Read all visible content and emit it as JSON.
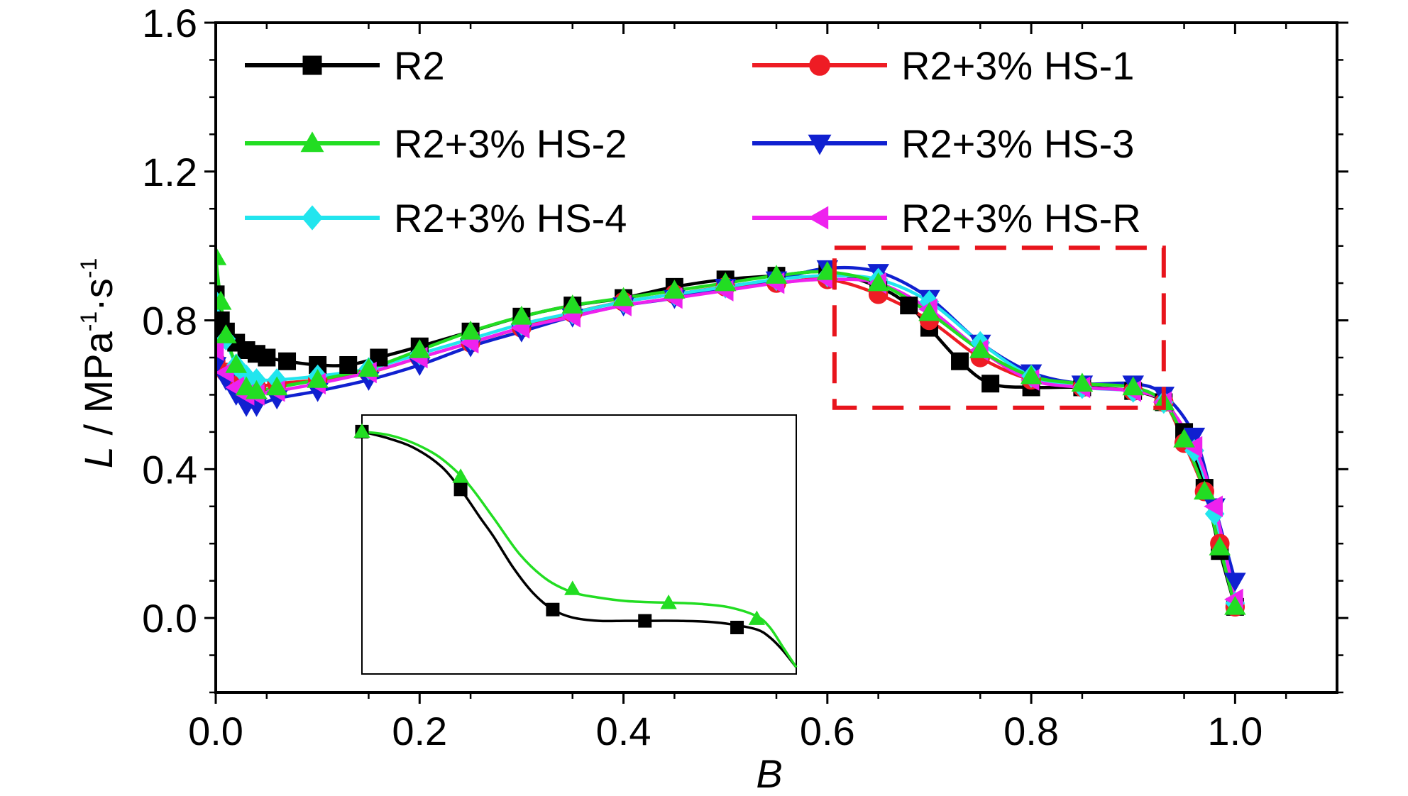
{
  "chart_data": {
    "type": "line",
    "xlabel": "B",
    "ylabel": {
      "var": "L",
      "unit_prefix": " / MPa",
      "exp1": "-1",
      "mid": "·s",
      "exp2": "-1"
    },
    "xlim": [
      0.0,
      1.1
    ],
    "ylim": [
      -0.2,
      1.6
    ],
    "x_ticks": [
      "0.0",
      "0.2",
      "0.4",
      "0.6",
      "0.8",
      "1.0"
    ],
    "x_tick_values": [
      0.0,
      0.2,
      0.4,
      0.6,
      0.8,
      1.0
    ],
    "y_ticks": [
      "0.0",
      "0.4",
      "0.8",
      "1.2",
      "1.6"
    ],
    "y_tick_values": [
      0.0,
      0.4,
      0.8,
      1.2,
      1.6
    ],
    "legend_position": "top",
    "grid": false,
    "series": [
      {
        "name": "R2",
        "color": "#000000",
        "marker": "square",
        "x": [
          0.0,
          0.005,
          0.01,
          0.02,
          0.03,
          0.04,
          0.05,
          0.07,
          0.1,
          0.13,
          0.16,
          0.2,
          0.25,
          0.3,
          0.35,
          0.4,
          0.45,
          0.5,
          0.55,
          0.6,
          0.65,
          0.68,
          0.7,
          0.73,
          0.76,
          0.8,
          0.85,
          0.9,
          0.93,
          0.95,
          0.97,
          0.985,
          1.0
        ],
        "y": [
          0.87,
          0.8,
          0.77,
          0.74,
          0.72,
          0.71,
          0.7,
          0.69,
          0.68,
          0.68,
          0.7,
          0.73,
          0.77,
          0.81,
          0.84,
          0.86,
          0.89,
          0.91,
          0.92,
          0.93,
          0.89,
          0.84,
          0.78,
          0.69,
          0.63,
          0.62,
          0.62,
          0.61,
          0.58,
          0.5,
          0.35,
          0.18,
          0.03
        ]
      },
      {
        "name": "R2+3% HS-1",
        "color": "#ee1c24",
        "marker": "circle",
        "x": [
          0.0,
          0.01,
          0.02,
          0.03,
          0.04,
          0.06,
          0.1,
          0.15,
          0.2,
          0.25,
          0.3,
          0.35,
          0.4,
          0.45,
          0.5,
          0.55,
          0.6,
          0.65,
          0.7,
          0.75,
          0.8,
          0.85,
          0.9,
          0.93,
          0.95,
          0.97,
          0.985,
          1.0
        ],
        "y": [
          0.69,
          0.66,
          0.63,
          0.62,
          0.62,
          0.63,
          0.64,
          0.66,
          0.7,
          0.74,
          0.78,
          0.82,
          0.85,
          0.87,
          0.89,
          0.9,
          0.91,
          0.87,
          0.8,
          0.7,
          0.64,
          0.62,
          0.61,
          0.58,
          0.47,
          0.34,
          0.2,
          0.03
        ]
      },
      {
        "name": "R2+3% HS-2",
        "color": "#22dd22",
        "marker": "triangle-up",
        "x": [
          0.0,
          0.005,
          0.01,
          0.02,
          0.03,
          0.04,
          0.06,
          0.1,
          0.15,
          0.2,
          0.25,
          0.3,
          0.35,
          0.4,
          0.45,
          0.5,
          0.55,
          0.6,
          0.65,
          0.7,
          0.75,
          0.8,
          0.85,
          0.9,
          0.93,
          0.95,
          0.97,
          0.985,
          1.0
        ],
        "y": [
          0.97,
          0.85,
          0.76,
          0.68,
          0.62,
          0.61,
          0.62,
          0.64,
          0.67,
          0.72,
          0.77,
          0.81,
          0.84,
          0.86,
          0.88,
          0.9,
          0.92,
          0.93,
          0.9,
          0.82,
          0.72,
          0.65,
          0.63,
          0.62,
          0.58,
          0.48,
          0.34,
          0.19,
          0.03
        ]
      },
      {
        "name": "R2+3% HS-3",
        "color": "#1020d0",
        "marker": "triangle-down",
        "x": [
          0.0,
          0.01,
          0.02,
          0.03,
          0.04,
          0.06,
          0.1,
          0.15,
          0.2,
          0.25,
          0.3,
          0.35,
          0.4,
          0.45,
          0.5,
          0.55,
          0.6,
          0.65,
          0.7,
          0.75,
          0.8,
          0.85,
          0.9,
          0.93,
          0.96,
          0.98,
          1.0
        ],
        "y": [
          0.68,
          0.64,
          0.6,
          0.57,
          0.57,
          0.59,
          0.61,
          0.64,
          0.68,
          0.73,
          0.77,
          0.81,
          0.84,
          0.86,
          0.89,
          0.91,
          0.94,
          0.93,
          0.86,
          0.74,
          0.66,
          0.63,
          0.63,
          0.6,
          0.49,
          0.3,
          0.1
        ]
      },
      {
        "name": "R2+3% HS-4",
        "color": "#22e5ee",
        "marker": "diamond",
        "x": [
          0.0,
          0.01,
          0.02,
          0.03,
          0.04,
          0.06,
          0.1,
          0.15,
          0.2,
          0.25,
          0.3,
          0.35,
          0.4,
          0.45,
          0.5,
          0.55,
          0.6,
          0.65,
          0.7,
          0.75,
          0.8,
          0.85,
          0.9,
          0.93,
          0.96,
          0.98,
          1.0
        ],
        "y": [
          0.85,
          0.75,
          0.68,
          0.65,
          0.64,
          0.64,
          0.65,
          0.67,
          0.71,
          0.75,
          0.79,
          0.82,
          0.85,
          0.87,
          0.89,
          0.91,
          0.92,
          0.91,
          0.85,
          0.74,
          0.65,
          0.62,
          0.61,
          0.58,
          0.45,
          0.28,
          0.04
        ]
      },
      {
        "name": "R2+3% HS-R",
        "color": "#ee22ee",
        "marker": "triangle-left",
        "x": [
          0.0,
          0.01,
          0.02,
          0.03,
          0.04,
          0.06,
          0.1,
          0.15,
          0.2,
          0.25,
          0.3,
          0.35,
          0.4,
          0.45,
          0.5,
          0.55,
          0.6,
          0.65,
          0.7,
          0.75,
          0.8,
          0.85,
          0.9,
          0.93,
          0.96,
          0.98,
          1.0
        ],
        "y": [
          0.72,
          0.66,
          0.62,
          0.6,
          0.6,
          0.61,
          0.63,
          0.66,
          0.7,
          0.74,
          0.78,
          0.81,
          0.84,
          0.86,
          0.88,
          0.9,
          0.91,
          0.9,
          0.83,
          0.72,
          0.64,
          0.62,
          0.61,
          0.58,
          0.46,
          0.3,
          0.05
        ]
      }
    ],
    "highlight_box": {
      "x0": 0.607,
      "x1": 0.93,
      "y0": 0.565,
      "y1": 0.995,
      "color": "#e8141c"
    },
    "inset": {
      "xlim": [
        0.6,
        0.93
      ],
      "ylim": [
        0.565,
        0.955
      ],
      "series": [
        {
          "name": "R2",
          "color": "#000000",
          "marker": "square",
          "x": [
            0.6,
            0.62,
            0.64,
            0.66,
            0.675,
            0.69,
            0.7,
            0.715,
            0.73,
            0.745,
            0.76,
            0.78,
            0.8,
            0.82,
            0.84,
            0.86,
            0.88,
            0.9,
            0.91,
            0.92,
            0.93
          ],
          "y": [
            0.93,
            0.92,
            0.905,
            0.878,
            0.843,
            0.8,
            0.772,
            0.725,
            0.687,
            0.662,
            0.65,
            0.645,
            0.645,
            0.645,
            0.645,
            0.644,
            0.64,
            0.632,
            0.62,
            0.6,
            0.575
          ]
        },
        {
          "name": "R2+3% HS-2",
          "color": "#22dd22",
          "marker": "triangle-up",
          "x": [
            0.6,
            0.62,
            0.64,
            0.66,
            0.68,
            0.7,
            0.72,
            0.74,
            0.76,
            0.78,
            0.8,
            0.82,
            0.84,
            0.86,
            0.88,
            0.9,
            0.91,
            0.92,
            0.93
          ],
          "y": [
            0.93,
            0.925,
            0.912,
            0.89,
            0.853,
            0.8,
            0.745,
            0.708,
            0.688,
            0.68,
            0.675,
            0.673,
            0.672,
            0.67,
            0.665,
            0.652,
            0.635,
            0.605,
            0.575
          ]
        }
      ],
      "markers": [
        {
          "series": 0,
          "x": [
            0.6,
            0.675,
            0.745,
            0.815,
            0.885
          ],
          "y": [
            0.93,
            0.843,
            0.662,
            0.645,
            0.635
          ]
        },
        {
          "series": 1,
          "x": [
            0.6,
            0.675,
            0.76,
            0.833,
            0.9
          ],
          "y": [
            0.93,
            0.862,
            0.693,
            0.672,
            0.648
          ]
        }
      ]
    }
  }
}
